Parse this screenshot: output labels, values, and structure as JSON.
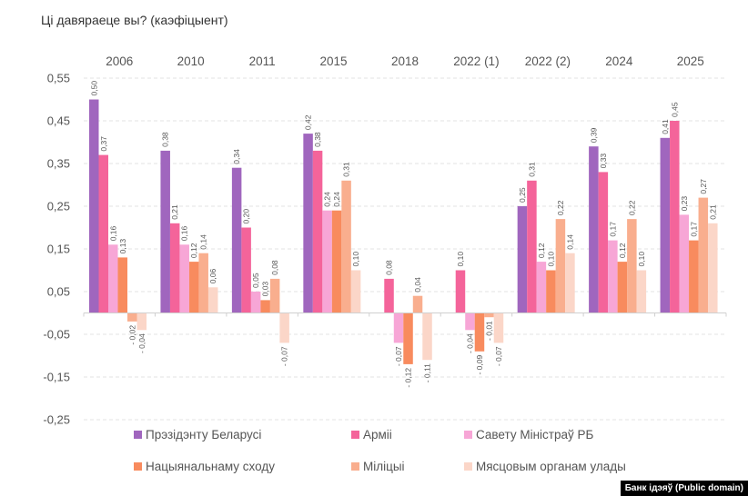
{
  "chart_data": {
    "type": "bar",
    "title": "Ці давяраеце вы? (каэфіцыент)",
    "xlabel": "",
    "ylabel": "",
    "ylim": [
      -0.25,
      0.55
    ],
    "yticks": [
      0.55,
      0.45,
      0.35,
      0.25,
      0.15,
      0.05,
      -0.05,
      -0.15,
      -0.25
    ],
    "ytick_labels": [
      "0,55",
      "0,45",
      "0,35",
      "0,25",
      "0,15",
      "0,05",
      "-0,05",
      "-0,15",
      "-0,25"
    ],
    "grid": true,
    "category_axis_position": "top",
    "legend_position": "bottom",
    "categories": [
      "2006",
      "2010",
      "2011",
      "2015",
      "2018",
      "2022 (1)",
      "2022 (2)",
      "2024",
      "2025"
    ],
    "series": [
      {
        "name": "Прэзідэнту Беларусі",
        "color": "#A066BE",
        "values": [
          0.5,
          0.38,
          0.34,
          0.42,
          null,
          null,
          0.25,
          0.39,
          0.41
        ],
        "labels": [
          "0,50",
          "0,38",
          "0,34",
          "0,42",
          null,
          null,
          "0,25",
          "0,39",
          "0,41"
        ]
      },
      {
        "name": "Арміі",
        "color": "#F4649A",
        "values": [
          0.37,
          0.21,
          0.2,
          0.38,
          0.08,
          0.1,
          0.31,
          0.33,
          0.45
        ],
        "labels": [
          "0,37",
          "0,21",
          "0,20",
          "0,38",
          "0,08",
          "0,10",
          "0,31",
          "0,33",
          "0,45"
        ]
      },
      {
        "name": "Савету Міністраў РБ",
        "color": "#F7A6D6",
        "values": [
          0.16,
          0.16,
          0.05,
          0.24,
          -0.07,
          -0.04,
          0.12,
          0.17,
          0.23
        ],
        "labels": [
          "0,16",
          "0,16",
          "0,05",
          "0,24",
          "- 0,07",
          "- 0,04",
          "0,12",
          "0,17",
          "0,23"
        ]
      },
      {
        "name": "Нацыянальнаму сходу",
        "color": "#F88B5E",
        "values": [
          0.13,
          0.12,
          0.03,
          0.24,
          -0.12,
          -0.09,
          0.1,
          0.12,
          0.17
        ],
        "labels": [
          "0,13",
          "0,12",
          "0,03",
          "0,24",
          "- 0,12",
          "- 0,09",
          "0,10",
          "0,12",
          "0,17"
        ]
      },
      {
        "name": "Міліцыі",
        "color": "#F9AE8E",
        "values": [
          -0.02,
          0.14,
          0.08,
          0.31,
          0.04,
          -0.01,
          0.22,
          0.22,
          0.27
        ],
        "labels": [
          "- 0,02",
          "0,14",
          "0,08",
          "0,31",
          "0,04",
          "- 0,01",
          "0,22",
          "0,22",
          "0,27"
        ]
      },
      {
        "name": "Мясцовым органам улады",
        "color": "#FBD6C8",
        "values": [
          -0.04,
          0.06,
          -0.07,
          0.1,
          -0.11,
          -0.07,
          0.14,
          0.1,
          0.21
        ],
        "labels": [
          "- 0,04",
          "0,06",
          "- 0,07",
          "0,10",
          "- 0,11",
          "- 0,07",
          "0,14",
          "0,10",
          "0,21"
        ]
      }
    ]
  },
  "credit": "Банк ідэяў (Public domain)"
}
